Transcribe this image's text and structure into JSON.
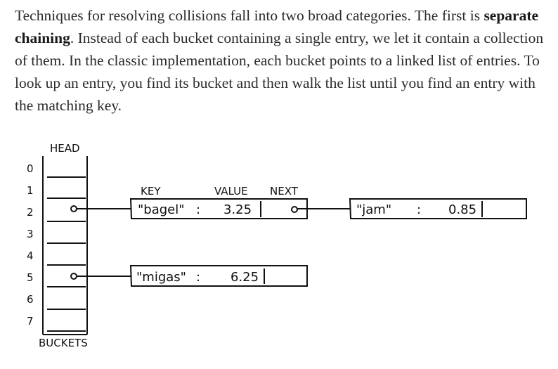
{
  "paragraph": {
    "before": "Techniques for resolving collisions fall into two broad categories. The first is ",
    "bold": "separate chaining",
    "after": ". Instead of each bucket containing a single entry, we let it contain a collection of them. In the classic implementation, each bucket points to a linked list of entries. To look up an entry, you find its bucket and then walk the list until you find an entry with the matching key."
  },
  "diagram": {
    "head_label": "HEAD",
    "buckets_label": "BUCKETS",
    "indices": [
      "0",
      "1",
      "2",
      "3",
      "4",
      "5",
      "6",
      "7"
    ],
    "column_labels": {
      "key": "KEY",
      "value": "VALUE",
      "next": "NEXT"
    },
    "entries": [
      {
        "key": "\"bagel\"",
        "sep": ":",
        "value": "3.25"
      },
      {
        "key": "\"jam\"",
        "sep": ":",
        "value": "0.85"
      },
      {
        "key": "\"migas\"",
        "sep": ":",
        "value": "6.25"
      }
    ]
  }
}
